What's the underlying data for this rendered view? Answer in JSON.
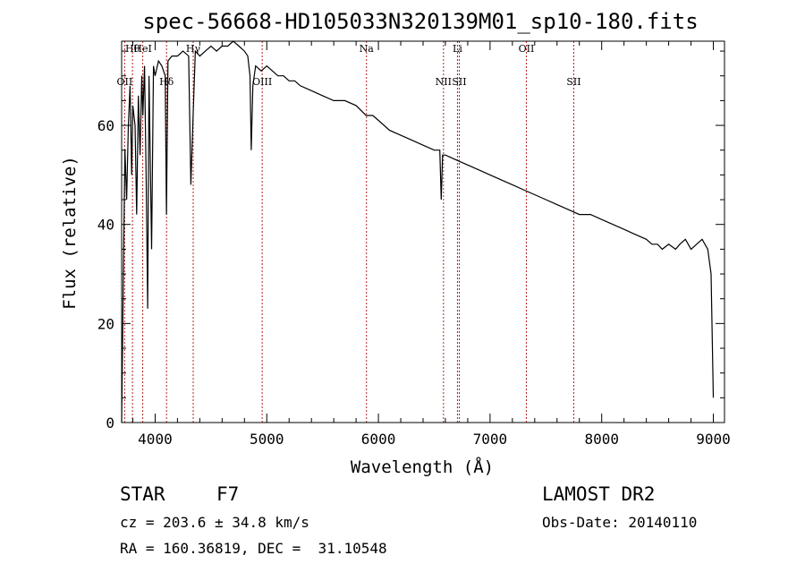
{
  "chart_data": {
    "type": "line",
    "title": "spec-56668-HD105033N320139M01_sp10-180.fits",
    "xlabel": "Wavelength (Å)",
    "ylabel": "Flux (relative)",
    "xlim": [
      3700,
      9100
    ],
    "ylim": [
      0,
      77
    ],
    "xticks": [
      4000,
      5000,
      6000,
      7000,
      8000,
      9000
    ],
    "yticks": [
      0,
      20,
      40,
      60
    ],
    "series": [
      {
        "name": "spectrum",
        "x": [
          3700,
          3715,
          3730,
          3745,
          3760,
          3775,
          3790,
          3800,
          3820,
          3835,
          3850,
          3865,
          3880,
          3890,
          3905,
          3920,
          3933,
          3945,
          3968,
          3985,
          4000,
          4030,
          4060,
          4090,
          4101,
          4115,
          4150,
          4200,
          4250,
          4300,
          4320,
          4340,
          4360,
          4400,
          4450,
          4500,
          4550,
          4600,
          4650,
          4700,
          4750,
          4800,
          4830,
          4850,
          4861,
          4875,
          4900,
          4950,
          5000,
          5050,
          5100,
          5150,
          5200,
          5250,
          5300,
          5400,
          5500,
          5600,
          5700,
          5800,
          5890,
          5950,
          6000,
          6100,
          6200,
          6300,
          6400,
          6500,
          6550,
          6563,
          6575,
          6600,
          6700,
          6800,
          6900,
          7000,
          7100,
          7200,
          7300,
          7400,
          7500,
          7600,
          7700,
          7800,
          7900,
          8000,
          8100,
          8200,
          8300,
          8400,
          8450,
          8500,
          8542,
          8600,
          8662,
          8700,
          8750,
          8800,
          8850,
          8900,
          8950,
          8980,
          9000
        ],
        "values": [
          0,
          30,
          55,
          45,
          60,
          68,
          50,
          64,
          60,
          42,
          66,
          54,
          70,
          62,
          72,
          48,
          23,
          70,
          35,
          72,
          70,
          73,
          72,
          70,
          42,
          73,
          74,
          74,
          75,
          74,
          48,
          62,
          75,
          74,
          75,
          76,
          75,
          76,
          76,
          77,
          76,
          75,
          74,
          70,
          55,
          68,
          72,
          71,
          72,
          71,
          70,
          70,
          69,
          69,
          68,
          67,
          66,
          65,
          65,
          64,
          62,
          62,
          61,
          59,
          58,
          57,
          56,
          55,
          55,
          45,
          54,
          54,
          53,
          52,
          51,
          50,
          49,
          48,
          47,
          46,
          45,
          44,
          43,
          42,
          42,
          41,
          40,
          39,
          38,
          37,
          36,
          36,
          35,
          36,
          35,
          36,
          37,
          35,
          36,
          37,
          35,
          30,
          5
        ]
      }
    ],
    "line_markers": [
      {
        "label": "Hθ",
        "x": 3797
      },
      {
        "label": "OII",
        "x": 3727
      },
      {
        "label": "HeI",
        "x": 3889
      },
      {
        "label": "Hδ",
        "x": 4102
      },
      {
        "label": "Hγ",
        "x": 4341
      },
      {
        "label": "OIII",
        "x": 4959
      },
      {
        "label": "Na",
        "x": 5893
      },
      {
        "label": "NII",
        "x": 6583
      },
      {
        "label": "Li",
        "x": 6708
      },
      {
        "label": "SII",
        "x": 6724
      },
      {
        "label": "OII",
        "x": 7325
      },
      {
        "label": "SII",
        "x": 7750
      }
    ]
  },
  "info": {
    "object_class": "STAR",
    "subclass": "F7",
    "redshift": "cz = 203.6 ± 34.8 km/s",
    "coords": "RA = 160.36819, DEC =  31.10548",
    "survey": "LAMOST DR2",
    "obs_date": "Obs-Date: 20140110"
  }
}
